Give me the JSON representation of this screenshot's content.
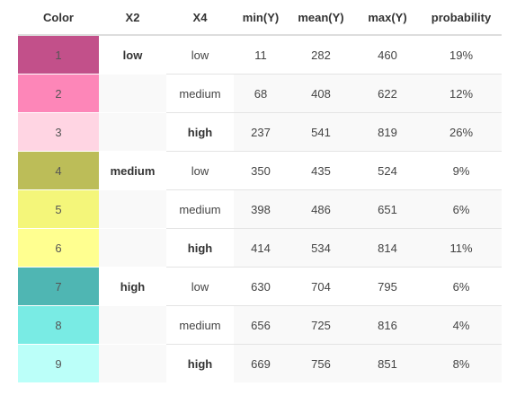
{
  "headers": {
    "color": "Color",
    "x2": "X2",
    "x4": "X4",
    "min": "min(Y)",
    "mean": "mean(Y)",
    "max": "max(Y)",
    "probability": "probability"
  },
  "rows": [
    {
      "color": "1",
      "swatch": "#c2508a",
      "x2": "low",
      "x4": "low",
      "x4_bold": false,
      "min": "11",
      "mean": "282",
      "max": "460",
      "probability": "19%"
    },
    {
      "color": "2",
      "swatch": "#fd86b8",
      "x2": "",
      "x4": "medium",
      "x4_bold": false,
      "min": "68",
      "mean": "408",
      "max": "622",
      "probability": "12%"
    },
    {
      "color": "3",
      "swatch": "#ffd5e3",
      "x2": "",
      "x4": "high",
      "x4_bold": true,
      "min": "237",
      "mean": "541",
      "max": "819",
      "probability": "26%"
    },
    {
      "color": "4",
      "swatch": "#bcbd58",
      "x2": "medium",
      "x4": "low",
      "x4_bold": false,
      "min": "350",
      "mean": "435",
      "max": "524",
      "probability": "9%"
    },
    {
      "color": "5",
      "swatch": "#f4f67a",
      "x2": "",
      "x4": "medium",
      "x4_bold": false,
      "min": "398",
      "mean": "486",
      "max": "651",
      "probability": "6%"
    },
    {
      "color": "6",
      "swatch": "#ffff90",
      "x2": "",
      "x4": "high",
      "x4_bold": true,
      "min": "414",
      "mean": "534",
      "max": "814",
      "probability": "11%"
    },
    {
      "color": "7",
      "swatch": "#4fb6b3",
      "x2": "high",
      "x4": "low",
      "x4_bold": false,
      "min": "630",
      "mean": "704",
      "max": "795",
      "probability": "6%"
    },
    {
      "color": "8",
      "swatch": "#79ebe4",
      "x2": "",
      "x4": "medium",
      "x4_bold": false,
      "min": "656",
      "mean": "725",
      "max": "816",
      "probability": "4%"
    },
    {
      "color": "9",
      "swatch": "#bbfff9",
      "x2": "",
      "x4": "high",
      "x4_bold": true,
      "min": "669",
      "mean": "756",
      "max": "851",
      "probability": "8%"
    }
  ]
}
